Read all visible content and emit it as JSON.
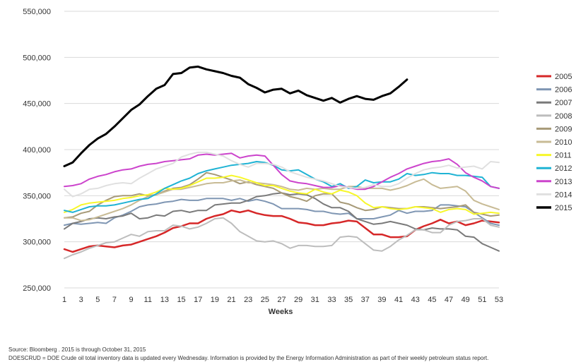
{
  "footnotes": {
    "source": "Source: Bloomberg . 2015 is through October 31, 2015",
    "description": "DOESCRUD = DOE Crude oil total inventory data is updated every Wednesday. Information is provided by the Energy Information Administration as part of their weekly petroleum status report."
  },
  "chart_data": {
    "type": "line",
    "title": "",
    "xlabel": "Weeks",
    "ylabel": "",
    "xlim": [
      1,
      53
    ],
    "ylim": [
      250000,
      550000
    ],
    "x_ticks": [
      1,
      3,
      5,
      7,
      9,
      11,
      13,
      15,
      17,
      19,
      21,
      23,
      25,
      27,
      29,
      31,
      33,
      35,
      37,
      39,
      41,
      43,
      45,
      47,
      49,
      51,
      53
    ],
    "y_ticks": [
      250000,
      300000,
      350000,
      400000,
      450000,
      500000,
      550000
    ],
    "y_tick_labels": [
      "250,000",
      "300,000",
      "350,000",
      "400,000",
      "450,000",
      "500,000",
      "550,000"
    ],
    "grid": "horizontal",
    "legend_position": "right",
    "series": [
      {
        "name": "2005",
        "color": "#d62728",
        "width": 2.5,
        "values": [
          292000,
          289000,
          292000,
          295000,
          296000,
          295000,
          294000,
          296000,
          297000,
          300000,
          303000,
          306000,
          310000,
          315000,
          317000,
          320000,
          320000,
          325000,
          328000,
          330000,
          334000,
          332000,
          334000,
          331000,
          329000,
          328000,
          328000,
          325000,
          321000,
          320000,
          318000,
          318000,
          320000,
          321000,
          323000,
          322000,
          315000,
          308000,
          308000,
          305000,
          305000,
          306000,
          313000,
          317000,
          320000,
          324000,
          320000,
          322000,
          318000,
          320000,
          323000,
          322000,
          321000
        ]
      },
      {
        "name": "2006",
        "color": "#7f96b3",
        "width": 2,
        "values": [
          318000,
          320000,
          319000,
          320000,
          321000,
          320000,
          326000,
          329000,
          333000,
          338000,
          340000,
          341000,
          343000,
          344000,
          346000,
          345000,
          345000,
          347000,
          347000,
          347000,
          345000,
          347000,
          344000,
          346000,
          344000,
          341000,
          336000,
          336000,
          336000,
          335000,
          333000,
          333000,
          331000,
          330000,
          331000,
          325000,
          325000,
          325000,
          327000,
          329000,
          334000,
          331000,
          333000,
          333000,
          334000,
          340000,
          340000,
          339000,
          338000,
          332000,
          326000,
          320000,
          318000
        ]
      },
      {
        "name": "2007",
        "color": "#7a7a7a",
        "width": 2,
        "values": [
          314000,
          320000,
          322000,
          325000,
          326000,
          325000,
          327000,
          328000,
          331000,
          325000,
          326000,
          329000,
          328000,
          333000,
          334000,
          332000,
          334000,
          334000,
          340000,
          341000,
          342000,
          342000,
          345000,
          349000,
          350000,
          352000,
          353000,
          351000,
          352000,
          351000,
          347000,
          341000,
          337000,
          337000,
          333000,
          325000,
          322000,
          319000,
          320000,
          322000,
          320000,
          318000,
          314000,
          313000,
          315000,
          314000,
          314000,
          313000,
          306000,
          305000,
          298000,
          294000,
          290000
        ]
      },
      {
        "name": "2008",
        "color": "#bdbdbd",
        "width": 2,
        "values": [
          282000,
          286000,
          289000,
          293000,
          296000,
          299000,
          300000,
          304000,
          308000,
          306000,
          311000,
          312000,
          312000,
          318000,
          317000,
          314000,
          316000,
          320000,
          325000,
          326000,
          320000,
          311000,
          306000,
          301000,
          300000,
          301000,
          298000,
          293000,
          296000,
          296000,
          295000,
          295000,
          296000,
          305000,
          306000,
          305000,
          298000,
          291000,
          290000,
          295000,
          302000,
          307000,
          313000,
          313000,
          310000,
          310000,
          318000,
          322000,
          323000,
          325000,
          325000,
          318000,
          316000
        ]
      },
      {
        "name": "2009",
        "color": "#a79a78",
        "width": 2,
        "values": [
          326000,
          327000,
          331000,
          333000,
          340000,
          345000,
          349000,
          350000,
          350000,
          352000,
          350000,
          351000,
          355000,
          358000,
          359000,
          362000,
          368000,
          375000,
          373000,
          370000,
          367000,
          363000,
          365000,
          362000,
          360000,
          358000,
          353000,
          349000,
          347000,
          344000,
          350000,
          352000,
          352000,
          343000,
          341000,
          337000,
          334000,
          335000,
          338000,
          337000,
          336000,
          336000,
          338000,
          338000,
          337000,
          336000,
          337000,
          338000,
          340000,
          332000,
          330000,
          328000,
          329000
        ]
      },
      {
        "name": "2010",
        "color": "#c8bb95",
        "width": 2,
        "values": [
          326000,
          326000,
          323000,
          324000,
          327000,
          330000,
          333000,
          336000,
          340000,
          345000,
          349000,
          351000,
          354000,
          357000,
          357000,
          359000,
          361000,
          363000,
          364000,
          364000,
          366000,
          367000,
          364000,
          364000,
          363000,
          362000,
          360000,
          357000,
          356000,
          358000,
          357000,
          358000,
          357000,
          357000,
          360000,
          360000,
          358000,
          358000,
          358000,
          356000,
          358000,
          361000,
          365000,
          368000,
          362000,
          358000,
          359000,
          360000,
          355000,
          345000,
          341000,
          338000,
          335000
        ]
      },
      {
        "name": "2011",
        "color": "#f7f72a",
        "width": 2,
        "values": [
          332000,
          335000,
          340000,
          342000,
          343000,
          344000,
          345000,
          347000,
          348000,
          350000,
          351000,
          354000,
          358000,
          357000,
          358000,
          361000,
          365000,
          369000,
          369000,
          370000,
          372000,
          370000,
          367000,
          364000,
          361000,
          361000,
          358000,
          355000,
          353000,
          352000,
          357000,
          354000,
          352000,
          356000,
          354000,
          350000,
          342000,
          337000,
          338000,
          336000,
          335000,
          336000,
          338000,
          337000,
          336000,
          332000,
          335000,
          336000,
          335000,
          330000,
          331000,
          332000,
          331000
        ]
      },
      {
        "name": "2012",
        "color": "#1fb3d4",
        "width": 2,
        "values": [
          334000,
          332000,
          335000,
          338000,
          339000,
          339000,
          340000,
          342000,
          344000,
          346000,
          347000,
          352000,
          358000,
          362000,
          366000,
          369000,
          374000,
          377000,
          379000,
          381000,
          383000,
          384000,
          385000,
          387000,
          386000,
          383000,
          378000,
          377000,
          378000,
          373000,
          368000,
          365000,
          360000,
          363000,
          358000,
          360000,
          367000,
          364000,
          365000,
          365000,
          368000,
          374000,
          372000,
          373000,
          375000,
          374000,
          374000,
          372000,
          372000,
          371000,
          370000,
          360000,
          358000
        ]
      },
      {
        "name": "2013",
        "color": "#cc44cc",
        "width": 2,
        "values": [
          360000,
          361000,
          363000,
          368000,
          371000,
          373000,
          376000,
          378000,
          379000,
          382000,
          384000,
          385000,
          387000,
          388000,
          389000,
          390000,
          394000,
          395000,
          394000,
          395000,
          396000,
          391000,
          393000,
          394000,
          393000,
          383000,
          373000,
          366000,
          364000,
          363000,
          361000,
          359000,
          359000,
          361000,
          359000,
          357000,
          357000,
          360000,
          365000,
          370000,
          374000,
          379000,
          382000,
          385000,
          387000,
          388000,
          390000,
          384000,
          375000,
          370000,
          366000,
          360000,
          358000
        ]
      },
      {
        "name": "2014",
        "color": "#e0e0e0",
        "width": 2,
        "values": [
          357000,
          349000,
          352000,
          357000,
          358000,
          361000,
          363000,
          364000,
          363000,
          369000,
          374000,
          379000,
          382000,
          385000,
          392000,
          395000,
          397000,
          397000,
          395000,
          393000,
          388000,
          384000,
          381000,
          385000,
          385000,
          384000,
          381000,
          376000,
          373000,
          370000,
          368000,
          366000,
          363000,
          360000,
          359000,
          358000,
          359000,
          362000,
          360000,
          360000,
          363000,
          369000,
          374000,
          378000,
          380000,
          381000,
          383000,
          380000,
          381000,
          382000,
          379000,
          387000,
          386000
        ]
      },
      {
        "name": "2015",
        "color": "#000000",
        "width": 3,
        "values": [
          382000,
          386000,
          396000,
          405000,
          412000,
          417000,
          425000,
          434000,
          443000,
          449000,
          458000,
          466000,
          470000,
          482000,
          483000,
          489000,
          490000,
          487000,
          485000,
          483000,
          480000,
          478000,
          471000,
          467000,
          462000,
          465000,
          466000,
          461000,
          464000,
          459000,
          456000,
          453000,
          456000,
          451000,
          455000,
          458000,
          455000,
          454000,
          458000,
          461000,
          468000,
          476000
        ]
      }
    ]
  }
}
